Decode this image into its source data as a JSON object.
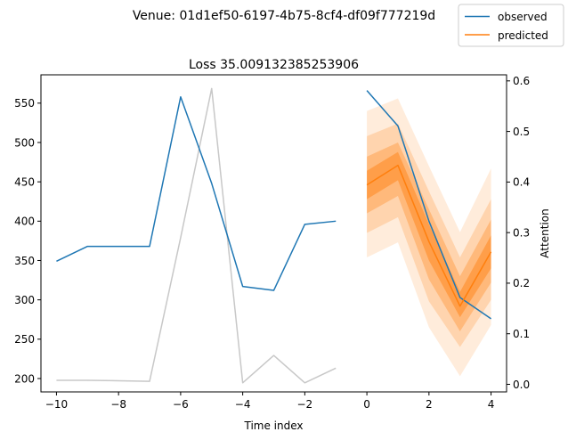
{
  "chart_data": {
    "type": "line",
    "suptitle": "Venue: 01d1ef50-6197-4b75-8cf4-df09f777219d",
    "title": "Loss 35.009132385253906",
    "xlabel": "Time index",
    "ylabel_right": "Attention",
    "xlim": [
      -10.5,
      4.5
    ],
    "ylim_left": [
      183,
      586
    ],
    "ylim_right": [
      -0.015,
      0.612
    ],
    "x_ticks": [
      -10,
      -8,
      -6,
      -4,
      -2,
      0,
      2,
      4
    ],
    "x_tick_labels": [
      "−10",
      "−8",
      "−6",
      "−4",
      "−2",
      "0",
      "2",
      "4"
    ],
    "y_left_ticks": [
      200,
      250,
      300,
      350,
      400,
      450,
      500,
      550
    ],
    "y_left_tick_labels": [
      "200",
      "250",
      "300",
      "350",
      "400",
      "450",
      "500",
      "550"
    ],
    "y_right_ticks": [
      0.0,
      0.1,
      0.2,
      0.3,
      0.4,
      0.5,
      0.6
    ],
    "y_right_tick_labels": [
      "0.0",
      "0.1",
      "0.2",
      "0.3",
      "0.4",
      "0.5",
      "0.6"
    ],
    "grid": false,
    "legend_placement": "top-right",
    "colors": {
      "observed": "#1f77b4",
      "predicted": "#ff7f0e",
      "attention": "#c8c8c8",
      "band": "#ff7f0e"
    },
    "series": [
      {
        "name": "observed",
        "axis": "left",
        "x": [
          -10,
          -9,
          -8,
          -7,
          -6,
          -5,
          -4,
          -3,
          -2,
          -1
        ],
        "values": [
          349,
          368,
          368,
          368,
          558,
          448,
          317,
          312,
          396,
          400
        ]
      },
      {
        "name": "observed",
        "axis": "left",
        "x": [
          0,
          1,
          2,
          3,
          4
        ],
        "values": [
          566,
          521,
          400,
          303,
          276
        ]
      },
      {
        "name": "predicted",
        "axis": "left",
        "x": [
          0,
          1,
          2,
          3,
          4
        ],
        "values": [
          446,
          471,
          374,
          292,
          361
        ]
      },
      {
        "name": "attention",
        "axis": "right",
        "x": [
          -10,
          -9,
          -8,
          -7,
          -6,
          -5,
          -4,
          -3,
          -2,
          -1
        ],
        "values": [
          0.008,
          0.008,
          0.007,
          0.006,
          0.29,
          0.585,
          0.003,
          0.057,
          0.003,
          0.032
        ]
      }
    ],
    "prediction_bands": [
      {
        "opacity": 0.15,
        "x": [
          0,
          1,
          2,
          3,
          4
        ],
        "lower": [
          354,
          373,
          265,
          203,
          268
        ],
        "upper": [
          540,
          556,
          470,
          386,
          467
        ]
      },
      {
        "opacity": 0.22,
        "x": [
          0,
          1,
          2,
          3,
          4
        ],
        "lower": [
          385,
          405,
          298,
          240,
          300
        ],
        "upper": [
          508,
          524,
          438,
          354,
          428
        ]
      },
      {
        "opacity": 0.32,
        "x": [
          0,
          1,
          2,
          3,
          4
        ],
        "lower": [
          410,
          432,
          326,
          260,
          322
        ],
        "upper": [
          482,
          500,
          415,
          330,
          402
        ]
      },
      {
        "opacity": 0.45,
        "x": [
          0,
          1,
          2,
          3,
          4
        ],
        "lower": [
          428,
          452,
          350,
          278,
          340
        ],
        "upper": [
          464,
          488,
          396,
          310,
          382
        ]
      }
    ],
    "legend": [
      "observed",
      "predicted"
    ]
  }
}
